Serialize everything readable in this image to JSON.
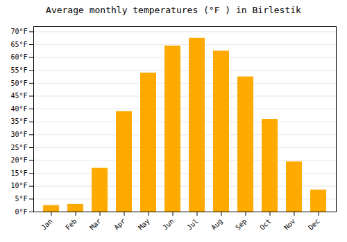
{
  "chart_data": {
    "type": "bar",
    "title": "Average monthly temperatures (°F ) in Birlestik",
    "categories": [
      "Jan",
      "Feb",
      "Mar",
      "Apr",
      "May",
      "Jun",
      "Jul",
      "Aug",
      "Sep",
      "Oct",
      "Nov",
      "Dec"
    ],
    "values": [
      2.5,
      3.0,
      17.0,
      39.0,
      54.0,
      64.5,
      67.5,
      62.5,
      52.5,
      36.0,
      19.5,
      8.5
    ],
    "color": "#FFAA00",
    "ylim": [
      0,
      72
    ],
    "yticks": [
      {
        "value": 0,
        "label": "0°F"
      },
      {
        "value": 5,
        "label": "5°F"
      },
      {
        "value": 10,
        "label": "10°F"
      },
      {
        "value": 15,
        "label": "15°F"
      },
      {
        "value": 20,
        "label": "20°F"
      },
      {
        "value": 25,
        "label": "25°F"
      },
      {
        "value": 30,
        "label": "30°F"
      },
      {
        "value": 35,
        "label": "35°F"
      },
      {
        "value": 40,
        "label": "40°F"
      },
      {
        "value": 45,
        "label": "45°F"
      },
      {
        "value": 50,
        "label": "50°F"
      },
      {
        "value": 55,
        "label": "55°F"
      },
      {
        "value": 60,
        "label": "60°F"
      },
      {
        "value": 65,
        "label": "65°F"
      },
      {
        "value": 70,
        "label": "70°F"
      }
    ],
    "grid": true
  }
}
